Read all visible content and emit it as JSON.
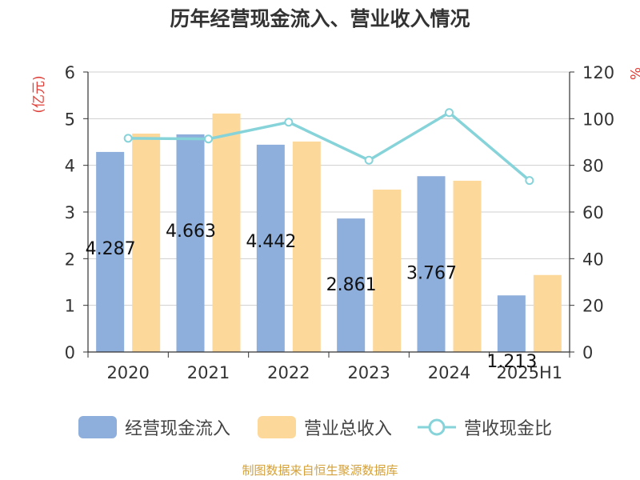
{
  "title": "历年经营现金流入、营业收入情况",
  "source": "制图数据来自恒生聚源数据库",
  "colors": {
    "cashflow": "#8eaedb",
    "revenue": "#fdd89b",
    "ratio": "#86d3d9",
    "axis_label": "#e0403a"
  },
  "chart_data": {
    "type": "bar",
    "categories": [
      "2020",
      "2021",
      "2022",
      "2023",
      "2024",
      "2025H1"
    ],
    "series": [
      {
        "name": "经营现金流入",
        "type": "bar",
        "axis": "left",
        "values": [
          4.287,
          4.663,
          4.442,
          2.861,
          3.767,
          1.213
        ]
      },
      {
        "name": "营业总收入",
        "type": "bar",
        "axis": "left",
        "values": [
          4.68,
          5.11,
          4.51,
          3.48,
          3.67,
          1.65
        ]
      },
      {
        "name": "营收现金比",
        "type": "line",
        "axis": "right",
        "values": [
          91.6,
          91.3,
          98.5,
          82.2,
          102.6,
          73.5
        ]
      }
    ],
    "data_labels": [
      "4.287",
      "4.663",
      "4.442",
      "2.861",
      "3.767",
      "1.213"
    ],
    "y_left": {
      "label": "(亿元)",
      "min": 0,
      "max": 6,
      "ticks": [
        "0",
        "1",
        "2",
        "3",
        "4",
        "5",
        "6"
      ]
    },
    "y_right": {
      "label": "%",
      "min": 0,
      "max": 120,
      "ticks": [
        "0",
        "20",
        "40",
        "60",
        "80",
        "100",
        "120"
      ]
    },
    "grid": true,
    "legend": "bottom"
  }
}
